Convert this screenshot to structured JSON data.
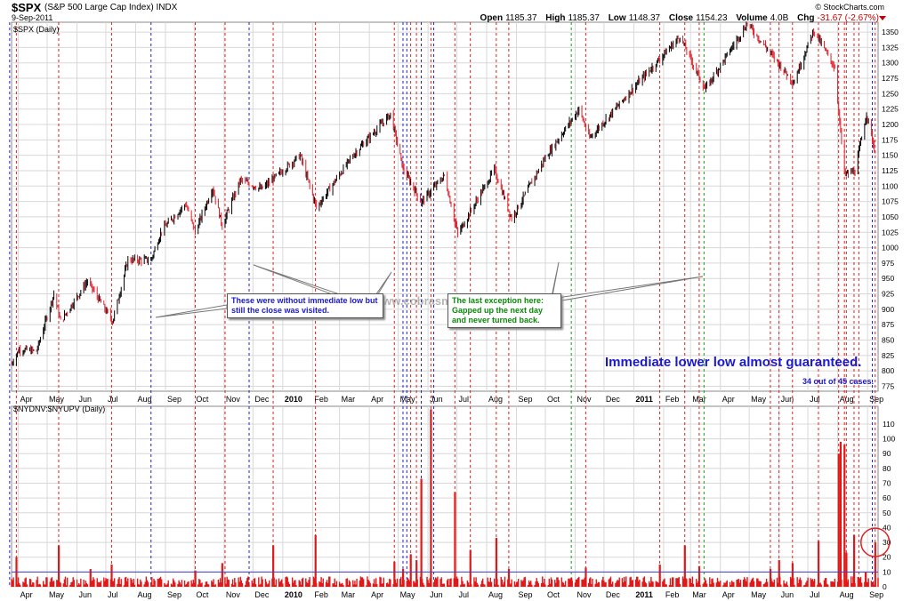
{
  "header": {
    "symbol": "$SPX",
    "name": "(S&P 500 Large Cap Index)",
    "exchange": "INDX",
    "date": "9-Sep-2011",
    "brand": "© StockCharts.com",
    "open_label": "Open",
    "open": "1185.37",
    "high_label": "High",
    "high": "1185.37",
    "low_label": "Low",
    "low": "1148.37",
    "close_label": "Close",
    "close": "1154.23",
    "volume_label": "Volume",
    "volume": "4.0B",
    "chg_label": "Chg",
    "chg": "-31.67 (-2.67%)"
  },
  "panels": {
    "price_label": "$SPX (Daily)",
    "breadth_label": "$NYDNV:$NYUPV (Daily)"
  },
  "annotations": {
    "note_blue": "These were without immediate low but still the close was visited.",
    "note_green": "The last exception here: Gapped up the next day and never turned back.",
    "big": "Immediate lower low almost guaranteed.",
    "small": "34 out of 45 cases.",
    "watermark": "www.cobrasmarketview.com"
  },
  "colors": {
    "up": "#000000",
    "down": "#e0202a",
    "red_line": "#e02020",
    "blue_line": "#2020cc",
    "green_line": "#10a010",
    "grid": "#d8d8d8",
    "volume_bar": "#e01818",
    "threshold": "#4040c0"
  },
  "chart_data": [
    {
      "type": "line",
      "title": "$SPX (Daily)",
      "y_axis_side": "right",
      "ylim": [
        767,
        1366
      ],
      "y_ticks": [
        775,
        800,
        825,
        850,
        875,
        900,
        925,
        950,
        975,
        1000,
        1025,
        1050,
        1075,
        1100,
        1125,
        1150,
        1175,
        1200,
        1225,
        1250,
        1275,
        1300,
        1325,
        1350
      ],
      "x_range": [
        "2009-03-25",
        "2011-09-12"
      ],
      "x_ticks": [
        {
          "date": "2009-04-01",
          "label": "Apr"
        },
        {
          "date": "2009-05-01",
          "label": "May"
        },
        {
          "date": "2009-06-01",
          "label": "Jun"
        },
        {
          "date": "2009-07-01",
          "label": "Jul"
        },
        {
          "date": "2009-08-01",
          "label": "Aug"
        },
        {
          "date": "2009-09-01",
          "label": "Sep"
        },
        {
          "date": "2009-10-01",
          "label": "Oct"
        },
        {
          "date": "2009-11-01",
          "label": "Nov"
        },
        {
          "date": "2009-12-01",
          "label": "Dec"
        },
        {
          "date": "2010-01-01",
          "label": "2010"
        },
        {
          "date": "2010-02-01",
          "label": "Feb"
        },
        {
          "date": "2010-03-01",
          "label": "Mar"
        },
        {
          "date": "2010-04-01",
          "label": "Apr"
        },
        {
          "date": "2010-05-01",
          "label": "May"
        },
        {
          "date": "2010-06-01",
          "label": "Jun"
        },
        {
          "date": "2010-07-01",
          "label": "Jul"
        },
        {
          "date": "2010-08-01",
          "label": "Aug"
        },
        {
          "date": "2010-09-01",
          "label": "Sep"
        },
        {
          "date": "2010-10-01",
          "label": "Oct"
        },
        {
          "date": "2010-11-01",
          "label": "Nov"
        },
        {
          "date": "2010-12-01",
          "label": "Dec"
        },
        {
          "date": "2011-01-01",
          "label": "2011"
        },
        {
          "date": "2011-02-01",
          "label": "Feb"
        },
        {
          "date": "2011-03-01",
          "label": "Mar"
        },
        {
          "date": "2011-04-01",
          "label": "Apr"
        },
        {
          "date": "2011-05-01",
          "label": "May"
        },
        {
          "date": "2011-06-01",
          "label": "Jun"
        },
        {
          "date": "2011-07-01",
          "label": "Jul"
        },
        {
          "date": "2011-08-01",
          "label": "Aug"
        },
        {
          "date": "2011-09-01",
          "label": "Sep"
        }
      ],
      "series": [
        {
          "points": [
            [
              "2009-03-25",
              812
            ],
            [
              "2009-04-02",
              835
            ],
            [
              "2009-04-20",
              832
            ],
            [
              "2009-05-08",
              925
            ],
            [
              "2009-05-15",
              880
            ],
            [
              "2009-06-12",
              946
            ],
            [
              "2009-07-08",
              880
            ],
            [
              "2009-07-24",
              980
            ],
            [
              "2009-08-17",
              980
            ],
            [
              "2009-08-28",
              1028
            ],
            [
              "2009-09-22",
              1071
            ],
            [
              "2009-10-02",
              1025
            ],
            [
              "2009-10-20",
              1097
            ],
            [
              "2009-10-30",
              1036
            ],
            [
              "2009-11-18",
              1110
            ],
            [
              "2009-12-10",
              1095
            ],
            [
              "2010-01-19",
              1150
            ],
            [
              "2010-02-05",
              1065
            ],
            [
              "2010-03-15",
              1150
            ],
            [
              "2010-04-23",
              1217
            ],
            [
              "2010-05-06",
              1128
            ],
            [
              "2010-05-25",
              1074
            ],
            [
              "2010-06-18",
              1117
            ],
            [
              "2010-07-02",
              1022
            ],
            [
              "2010-08-09",
              1127
            ],
            [
              "2010-08-27",
              1047
            ],
            [
              "2010-10-01",
              1146
            ],
            [
              "2010-11-05",
              1225
            ],
            [
              "2010-11-16",
              1178
            ],
            [
              "2010-12-31",
              1258
            ],
            [
              "2011-02-18",
              1343
            ],
            [
              "2011-03-16",
              1257
            ],
            [
              "2011-04-29",
              1364
            ],
            [
              "2011-06-16",
              1268
            ],
            [
              "2011-07-07",
              1353
            ],
            [
              "2011-07-29",
              1292
            ],
            [
              "2011-08-08",
              1119
            ],
            [
              "2011-08-19",
              1124
            ],
            [
              "2011-08-31",
              1218
            ],
            [
              "2011-09-09",
              1154
            ]
          ]
        }
      ],
      "vertical_markers": {
        "red": [
          "2009-03-30",
          "2009-05-13",
          "2009-07-07",
          "2009-10-02",
          "2009-11-02",
          "2009-12-22",
          "2010-02-04",
          "2010-04-27",
          "2010-05-14",
          "2010-05-20",
          "2010-06-04",
          "2010-06-29",
          "2010-07-15",
          "2010-08-11",
          "2010-08-24",
          "2010-11-12",
          "2011-01-28",
          "2011-02-23",
          "2011-03-10",
          "2011-05-23",
          "2011-06-01",
          "2011-06-15",
          "2011-07-12",
          "2011-08-02",
          "2011-08-08",
          "2011-08-10",
          "2011-08-18",
          "2011-08-23",
          "2011-09-09"
        ],
        "blue": [
          "2009-03-23",
          "2009-08-17",
          "2009-11-27",
          "2010-05-06",
          "2010-05-10",
          "2010-05-25",
          "2010-06-07",
          "2011-09-06"
        ],
        "green": [
          "2010-10-28",
          "2011-03-15"
        ]
      }
    },
    {
      "type": "bar",
      "title": "$NYDNV:$NYUPV (Daily)",
      "ylim": [
        0,
        122
      ],
      "y_ticks": [
        0,
        10,
        20,
        30,
        40,
        50,
        60,
        70,
        80,
        90,
        100,
        110
      ],
      "threshold_line": 10,
      "spikes": [
        [
          "2009-03-30",
          20
        ],
        [
          "2009-05-13",
          28
        ],
        [
          "2009-06-15",
          12
        ],
        [
          "2009-07-07",
          15
        ],
        [
          "2009-10-02",
          11
        ],
        [
          "2009-10-30",
          16
        ],
        [
          "2009-12-22",
          28
        ],
        [
          "2010-02-04",
          35
        ],
        [
          "2010-04-27",
          17
        ],
        [
          "2010-05-06",
          12
        ],
        [
          "2010-05-14",
          22
        ],
        [
          "2010-05-20",
          18
        ],
        [
          "2010-05-25",
          73
        ],
        [
          "2010-06-04",
          120
        ],
        [
          "2010-06-29",
          64
        ],
        [
          "2010-07-15",
          25
        ],
        [
          "2010-08-11",
          33
        ],
        [
          "2010-08-24",
          12
        ],
        [
          "2010-10-28",
          6
        ],
        [
          "2010-11-12",
          13
        ],
        [
          "2011-01-28",
          15
        ],
        [
          "2011-02-23",
          28
        ],
        [
          "2011-03-10",
          14
        ],
        [
          "2011-05-23",
          12
        ],
        [
          "2011-06-01",
          18
        ],
        [
          "2011-06-15",
          16
        ],
        [
          "2011-07-12",
          31
        ],
        [
          "2011-08-02",
          90
        ],
        [
          "2011-08-04",
          98
        ],
        [
          "2011-08-08",
          96
        ],
        [
          "2011-08-10",
          23
        ],
        [
          "2011-08-18",
          35
        ],
        [
          "2011-08-30",
          10
        ],
        [
          "2011-09-09",
          30
        ]
      ],
      "baseline_volume_range": [
        1,
        7
      ],
      "highlight_circle_date": "2011-09-09"
    }
  ]
}
